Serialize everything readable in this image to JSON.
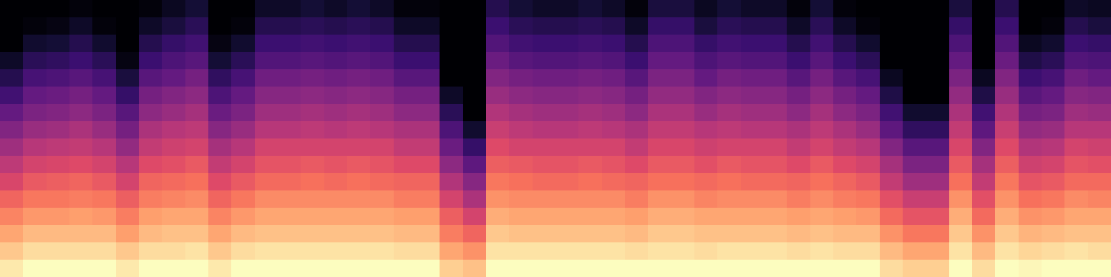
{
  "chart_data": {
    "type": "heatmap",
    "color": "magma",
    "tick_labels": false,
    "cells": [
      [
        -13,
        -10,
        -10,
        -10,
        -10,
        -13,
        -10,
        -10,
        -10,
        -13,
        -10,
        -10,
        -10,
        -10,
        -10,
        -10,
        -10,
        -10,
        -10,
        -17,
        -19,
        -10,
        -10,
        -10,
        -10,
        -10,
        -10,
        -10,
        -10,
        -10,
        -10,
        -10,
        -10,
        -10,
        -10,
        -10,
        -10,
        -10,
        -15,
        -17,
        -17,
        -10,
        -15,
        -10,
        -11,
        -10,
        -10,
        -10
      ],
      [
        -18,
        -15,
        -15,
        -15,
        -15,
        -18,
        -15,
        -15,
        -14,
        -18,
        -15,
        -14,
        -14,
        -14,
        -14,
        -14,
        -14,
        -15,
        -15,
        -23,
        -26,
        -14,
        -14,
        -14,
        -14,
        -14,
        -14,
        -15,
        -14,
        -14,
        -15,
        -14,
        -14,
        -14,
        -15,
        -14,
        -15,
        -15,
        -20,
        -23,
        -23,
        -14,
        -20,
        -14,
        -16,
        -15,
        -14,
        -15
      ],
      [
        -23,
        -20,
        -20,
        -20,
        -20,
        -24,
        -20,
        -19,
        -19,
        -23,
        -20,
        -19,
        -19,
        -19,
        -19,
        -19,
        -19,
        -20,
        -20,
        -29,
        -33,
        -18,
        -19,
        -19,
        -19,
        -19,
        -19,
        -20,
        -18,
        -18,
        -19,
        -19,
        -19,
        -19,
        -20,
        -19,
        -20,
        -20,
        -26,
        -30,
        -30,
        -18,
        -26,
        -18,
        -21,
        -20,
        -19,
        -19
      ],
      [
        -28,
        -25,
        -25,
        -24,
        -25,
        -29,
        -24,
        -23,
        -23,
        -28,
        -25,
        -23,
        -23,
        -23,
        -23,
        -23,
        -23,
        -24,
        -24,
        -34,
        -40,
        -22,
        -23,
        -23,
        -23,
        -23,
        -23,
        -24,
        -22,
        -22,
        -23,
        -23,
        -23,
        -23,
        -24,
        -23,
        -24,
        -25,
        -32,
        -36,
        -36,
        -22,
        -32,
        -22,
        -26,
        -25,
        -23,
        -23
      ],
      [
        -33,
        -30,
        -30,
        -29,
        -30,
        -34,
        -29,
        -28,
        -27,
        -33,
        -30,
        -27,
        -27,
        -27,
        -27,
        -27,
        -27,
        -29,
        -29,
        -40,
        -47,
        -26,
        -27,
        -27,
        -27,
        -27,
        -27,
        -29,
        -26,
        -26,
        -28,
        -27,
        -27,
        -27,
        -29,
        -27,
        -29,
        -30,
        -37,
        -42,
        -42,
        -26,
        -37,
        -26,
        -31,
        -30,
        -27,
        -28
      ],
      [
        -39,
        -35,
        -34,
        -33,
        -35,
        -40,
        -33,
        -32,
        -31,
        -38,
        -35,
        -32,
        -32,
        -31,
        -32,
        -31,
        -32,
        -33,
        -33,
        -46,
        -53,
        -30,
        -31,
        -32,
        -32,
        -31,
        -32,
        -33,
        -31,
        -31,
        -32,
        -31,
        -32,
        -32,
        -33,
        -31,
        -33,
        -35,
        -43,
        -49,
        -49,
        -31,
        -43,
        -30,
        -36,
        -35,
        -32,
        -32
      ],
      [
        -44,
        -40,
        -39,
        -38,
        -40,
        -45,
        -38,
        -37,
        -35,
        -43,
        -40,
        -36,
        -36,
        -35,
        -36,
        -35,
        -36,
        -38,
        -38,
        -52,
        -60,
        -34,
        -35,
        -36,
        -36,
        -35,
        -36,
        -38,
        -35,
        -35,
        -37,
        -35,
        -36,
        -36,
        -38,
        -35,
        -38,
        -40,
        -48,
        -55,
        -55,
        -35,
        -48,
        -34,
        -41,
        -40,
        -36,
        -37
      ],
      [
        -49,
        -45,
        -44,
        -43,
        -45,
        -51,
        -43,
        -41,
        -40,
        -48,
        -45,
        -40,
        -40,
        -40,
        -40,
        -40,
        -40,
        -43,
        -43,
        -58,
        -67,
        -38,
        -40,
        -40,
        -40,
        -40,
        -40,
        -43,
        -39,
        -39,
        -41,
        -40,
        -40,
        -40,
        -43,
        -40,
        -43,
        -45,
        -54,
        -61,
        -61,
        -39,
        -54,
        -38,
        -46,
        -45,
        -40,
        -41
      ],
      [
        -54,
        -50,
        -49,
        -47,
        -50,
        -56,
        -47,
        -45,
        -44,
        -53,
        -50,
        -45,
        -45,
        -44,
        -45,
        -44,
        -45,
        -47,
        -47,
        -63,
        -74,
        -42,
        -44,
        -45,
        -45,
        -44,
        -45,
        -47,
        -43,
        -43,
        -45,
        -44,
        -45,
        -45,
        -47,
        -44,
        -47,
        -50,
        -60,
        -68,
        -68,
        -43,
        -60,
        -42,
        -51,
        -50,
        -45,
        -45
      ],
      [
        -59,
        -55,
        -54,
        -52,
        -55,
        -61,
        -52,
        -50,
        -48,
        -58,
        -55,
        -49,
        -49,
        -48,
        -49,
        -48,
        -49,
        -52,
        -52,
        -69,
        -80,
        -46,
        -48,
        -49,
        -49,
        -48,
        -49,
        -52,
        -47,
        -47,
        -50,
        -48,
        -49,
        -49,
        -52,
        -48,
        -52,
        -55,
        -65,
        -74,
        -74,
        -47,
        -65,
        -46,
        -56,
        -55,
        -49,
        -50
      ],
      [
        -65,
        -59,
        -58,
        -56,
        -59,
        -67,
        -56,
        -54,
        -52,
        -63,
        -59,
        -53,
        -53,
        -52,
        -53,
        -52,
        -53,
        -56,
        -56,
        -75,
        -80,
        -50,
        -52,
        -53,
        -53,
        -52,
        -53,
        -56,
        -51,
        -51,
        -54,
        -52,
        -53,
        -53,
        -56,
        -52,
        -56,
        -59,
        -71,
        -80,
        -80,
        -51,
        -71,
        -50,
        -61,
        -59,
        -53,
        -54
      ],
      [
        -70,
        -64,
        -63,
        -61,
        -64,
        -72,
        -61,
        -59,
        -56,
        -68,
        -64,
        -57,
        -57,
        -56,
        -57,
        -56,
        -57,
        -61,
        -61,
        -80,
        -80,
        -54,
        -56,
        -57,
        -57,
        -56,
        -57,
        -61,
        -55,
        -55,
        -59,
        -56,
        -57,
        -57,
        -61,
        -56,
        -61,
        -64,
        -76,
        -80,
        -80,
        -55,
        -76,
        -54,
        -66,
        -64,
        -57,
        -59
      ],
      [
        -75,
        -69,
        -68,
        -66,
        -69,
        -78,
        -66,
        -63,
        -61,
        -73,
        -69,
        -62,
        -62,
        -61,
        -62,
        -61,
        -62,
        -66,
        -66,
        -80,
        -80,
        -58,
        -61,
        -62,
        -62,
        -61,
        -62,
        -66,
        -59,
        -59,
        -63,
        -61,
        -62,
        -62,
        -66,
        -61,
        -66,
        -69,
        -80,
        -80,
        -80,
        -59,
        -80,
        -58,
        -71,
        -69,
        -62,
        -63
      ],
      [
        -80,
        -74,
        -73,
        -70,
        -74,
        -80,
        -70,
        -67,
        -65,
        -78,
        -74,
        -66,
        -66,
        -65,
        -66,
        -65,
        -66,
        -70,
        -70,
        -80,
        -80,
        -62,
        -65,
        -66,
        -66,
        -65,
        -66,
        -70,
        -63,
        -63,
        -67,
        -65,
        -66,
        -66,
        -70,
        -65,
        -70,
        -74,
        -80,
        -80,
        -80,
        -63,
        -80,
        -62,
        -76,
        -74,
        -66,
        -67
      ],
      [
        -80,
        -79,
        -78,
        -75,
        -79,
        -80,
        -75,
        -72,
        -69,
        -80,
        -79,
        -70,
        -70,
        -69,
        -70,
        -69,
        -70,
        -75,
        -75,
        -80,
        -80,
        -66,
        -69,
        -70,
        -70,
        -69,
        -70,
        -75,
        -67,
        -67,
        -72,
        -69,
        -70,
        -70,
        -75,
        -69,
        -75,
        -79,
        -80,
        -80,
        -80,
        -67,
        -80,
        -66,
        -80,
        -79,
        -70,
        -72
      ],
      [
        -80,
        -80,
        -80,
        -79,
        -80,
        -80,
        -79,
        -76,
        -73,
        -80,
        -80,
        -75,
        -75,
        -73,
        -75,
        -73,
        -75,
        -79,
        -79,
        -80,
        -80,
        -70,
        -73,
        -75,
        -75,
        -73,
        -75,
        -79,
        -72,
        -72,
        -76,
        -73,
        -75,
        -75,
        -79,
        -73,
        -79,
        -80,
        -80,
        -80,
        -80,
        -72,
        -80,
        -70,
        -80,
        -80,
        -75,
        -76
      ]
    ]
  }
}
